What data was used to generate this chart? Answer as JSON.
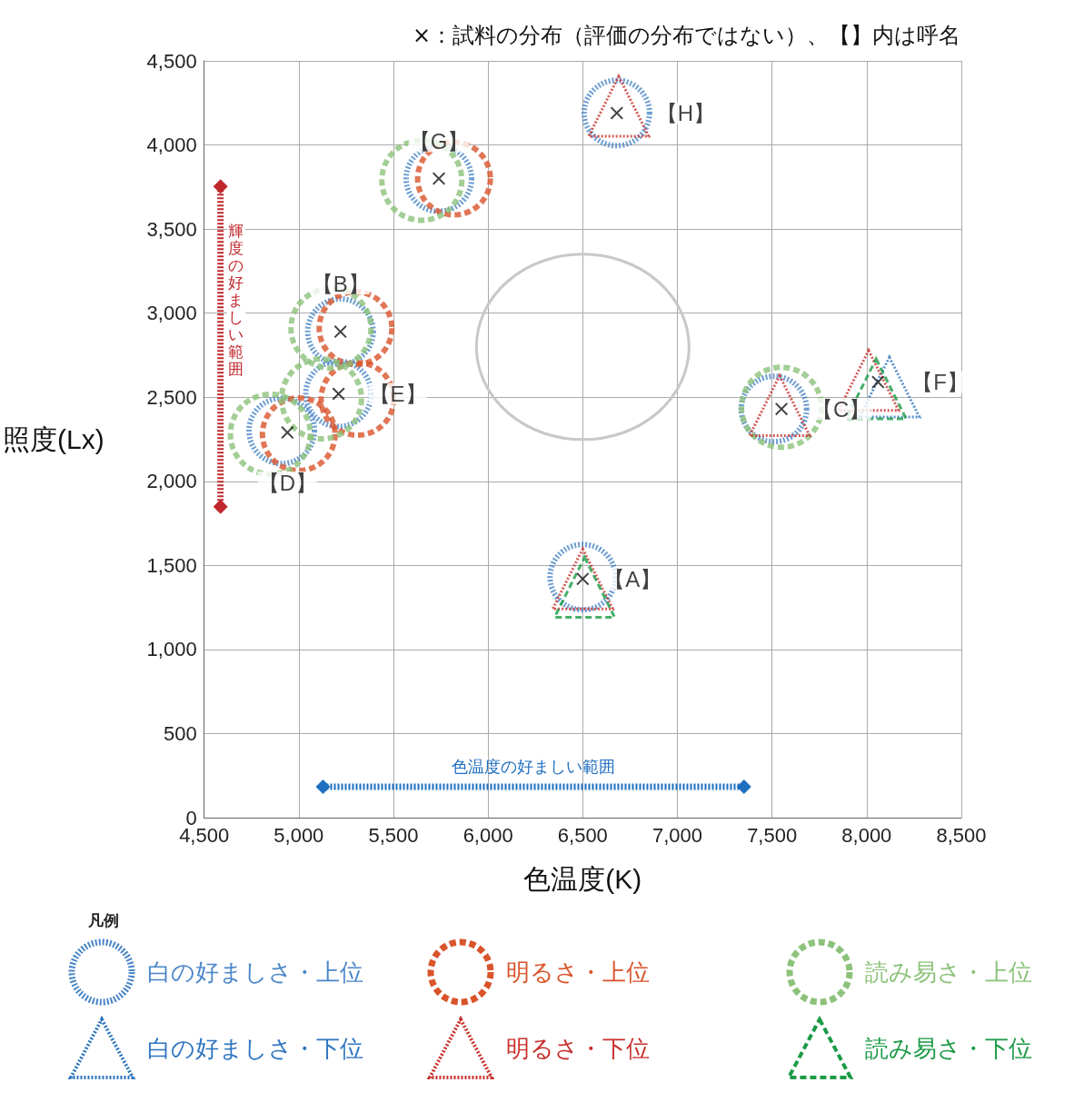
{
  "chart_data": {
    "type": "scatter",
    "title": "×：試料の分布（評価の分布ではない）、【】内は呼名",
    "xlabel": "色温度(K)",
    "ylabel": "照度(Lx)",
    "legend_title": "凡例",
    "xlim": [
      4500,
      8500
    ],
    "xticks": [
      {
        "value": 4500,
        "label": "4,500"
      },
      {
        "value": 5000,
        "label": "5,000"
      },
      {
        "value": 5500,
        "label": "5,500"
      },
      {
        "value": 6000,
        "label": "6,000"
      },
      {
        "value": 6500,
        "label": "6,500"
      },
      {
        "value": 7000,
        "label": "7,000"
      },
      {
        "value": 7500,
        "label": "7,500"
      },
      {
        "value": 8000,
        "label": "8,000"
      },
      {
        "value": 8500,
        "label": "8,500"
      }
    ],
    "ylim": [
      0,
      4500
    ],
    "yticks": [
      0,
      {
        "value": 500,
        "label": "500"
      },
      {
        "value": 1000,
        "label": "1,000"
      },
      {
        "value": 1500,
        "label": "1,500"
      },
      {
        "value": 2000,
        "label": "2,000"
      },
      {
        "value": 2500,
        "label": "2,500"
      },
      {
        "value": 3000,
        "label": "3,000"
      },
      {
        "value": 3500,
        "label": "3,500"
      },
      {
        "value": 4000,
        "label": "4,000"
      },
      {
        "value": 4500,
        "label": "4,500"
      }
    ],
    "grid": true,
    "legend": "bottom",
    "series": [
      {
        "name": "白の好ましさ・上位",
        "color": "#4a86c8",
        "marker": "circle",
        "line_style": "dotted",
        "x": [
          6500,
          5220,
          7510,
          4910,
          5210,
          5740,
          6680
        ],
        "values": [
          1430,
          2890,
          2430,
          2300,
          2520,
          3800,
          4190
        ]
      },
      {
        "name": "明るさ・上位",
        "color": "#d9542b",
        "marker": "circle",
        "line_style": "dashed",
        "x": [
          5300,
          5000,
          5310,
          5820
        ],
        "values": [
          2910,
          2280,
          2490,
          3800
        ]
      },
      {
        "name": "読み易さ・上位",
        "color": "#8cc27a",
        "marker": "circle",
        "line_style": "dashed",
        "x": [
          5170,
          7550,
          4850,
          5120,
          5650
        ],
        "values": [
          2910,
          2440,
          2280,
          2490,
          3790
        ]
      },
      {
        "name": "白の好ましさ・下位",
        "color": "#2e75c0",
        "marker": "triangle",
        "line_style": "dotted",
        "x": [
          8120
        ],
        "values": [
          2560
        ]
      },
      {
        "name": "明るさ・下位",
        "color": "#c8302c",
        "marker": "triangle",
        "line_style": "dotted",
        "x": [
          6500,
          7540,
          8010,
          6690
        ],
        "values": [
          1420,
          2450,
          2600,
          4230
        ]
      },
      {
        "name": "読み易さ・下位",
        "color": "#1a9a45",
        "marker": "triangle",
        "line_style": "dashed",
        "x": [
          6510,
          8050
        ],
        "values": [
          1370,
          2550
        ]
      },
      {
        "color": "#111111",
        "marker": "cross",
        "x": [
          6500,
          5220,
          7550,
          4940,
          5210,
          8060,
          5740,
          6680
        ],
        "values": [
          1420,
          2890,
          2430,
          2290,
          2520,
          2590,
          3800,
          4190
        ],
        "value_labels": [
          "【A】",
          "【B】",
          "【C】",
          "【D】",
          "【E】",
          "【F】",
          "【G】",
          "【H】"
        ]
      }
    ],
    "annotations": [
      "輝度の好ましい範囲",
      "色温度の好ましい範囲"
    ]
  }
}
